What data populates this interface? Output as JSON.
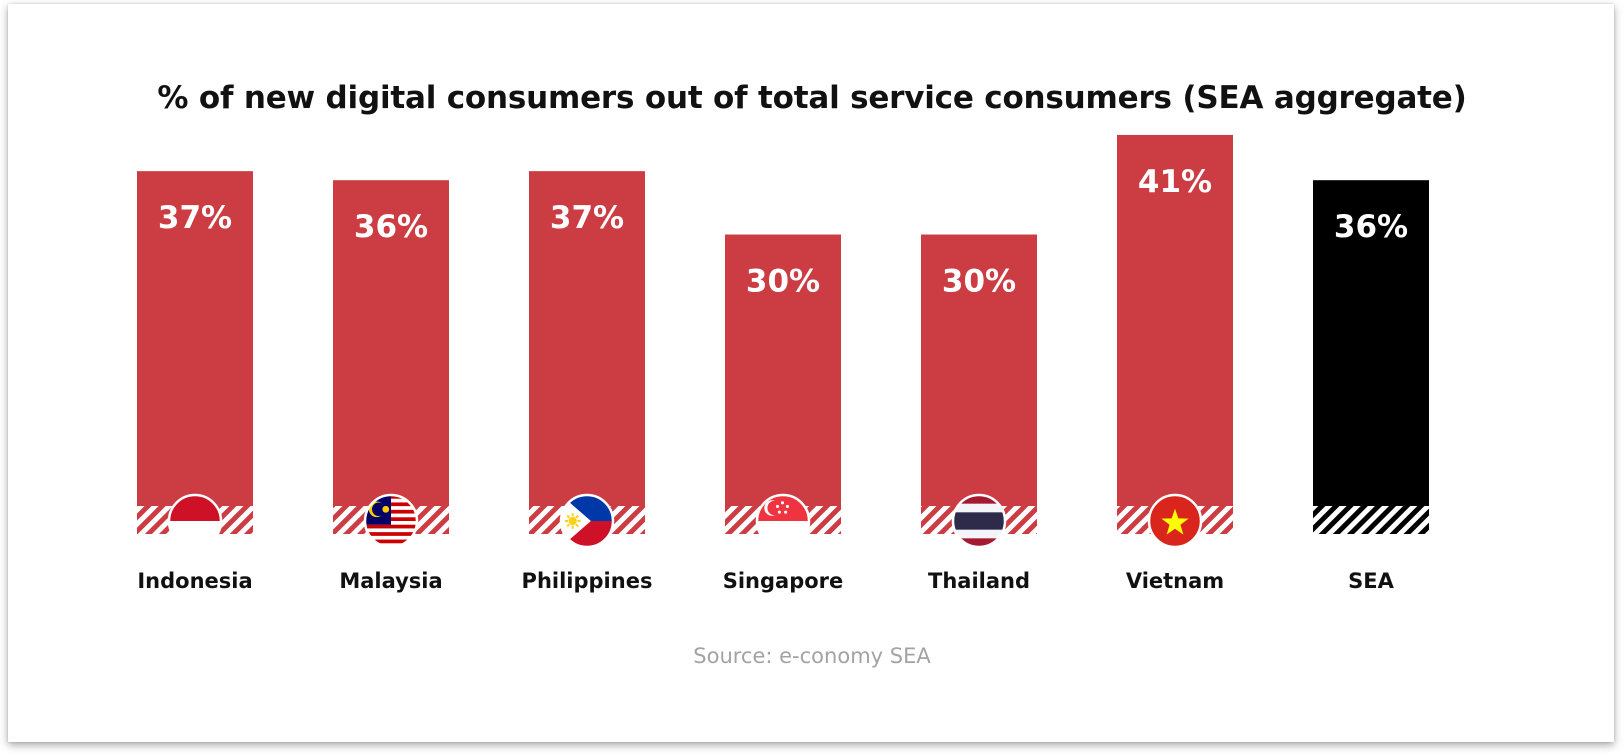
{
  "chart_data": {
    "type": "bar",
    "title": "% of new digital consumers out of total service consumers (SEA aggregate)",
    "categories": [
      "Indonesia",
      "Malaysia",
      "Philippines",
      "Singapore",
      "Thailand",
      "Vietnam",
      "SEA"
    ],
    "values": [
      37,
      36,
      37,
      30,
      30,
      41,
      36
    ],
    "value_labels": [
      "37%",
      "36%",
      "37%",
      "30%",
      "30%",
      "41%",
      "36%"
    ],
    "flags": [
      "indonesia-flag-icon",
      "malaysia-flag-icon",
      "philippines-flag-icon",
      "singapore-flag-icon",
      "thailand-flag-icon",
      "vietnam-flag-icon",
      ""
    ],
    "colors": {
      "country_bar": "#cc3d43",
      "aggregate_bar": "#000000"
    },
    "ylim": [
      0,
      41
    ],
    "grid": false,
    "legend": "none"
  },
  "source": "Source: e-conomy SEA"
}
